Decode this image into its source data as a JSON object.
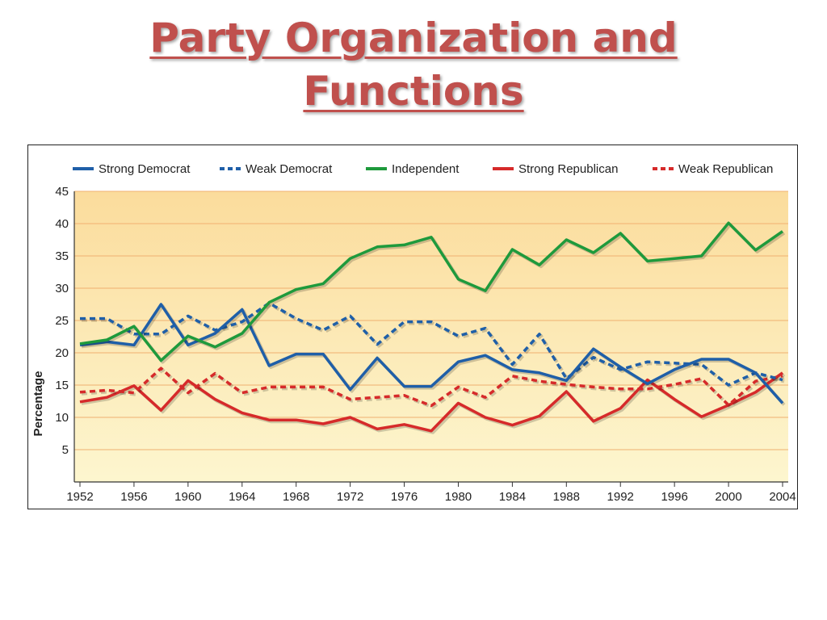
{
  "slide": {
    "title_line1": "Party Organization and",
    "title_line2": "Functions"
  },
  "colors": {
    "title": "#c0504d",
    "strong_democrat": "#1f5fa8",
    "weak_democrat": "#1f5fa8",
    "independent": "#1e9a3c",
    "strong_republican": "#d62a2a",
    "weak_republican": "#d62a2a",
    "plot_background_top": "#fbdc9c",
    "plot_background_bottom": "#fdf6cf",
    "gridline": "#f0b070"
  },
  "chart_data": {
    "type": "line",
    "title": "",
    "xlabel": "",
    "ylabel": "Percentage",
    "xlim": [
      1952,
      2004
    ],
    "ylim": [
      0,
      45
    ],
    "x_ticks": [
      1952,
      1956,
      1960,
      1964,
      1968,
      1972,
      1976,
      1980,
      1984,
      1988,
      1992,
      1996,
      2000,
      2004
    ],
    "y_ticks": [
      5,
      10,
      15,
      20,
      25,
      30,
      35,
      40,
      45
    ],
    "grid": true,
    "legend_position": "top",
    "x": [
      1952,
      1954,
      1956,
      1958,
      1960,
      1962,
      1964,
      1966,
      1968,
      1970,
      1972,
      1974,
      1976,
      1978,
      1980,
      1982,
      1984,
      1986,
      1988,
      1990,
      1992,
      1994,
      1996,
      1998,
      2000,
      2002,
      2004
    ],
    "series": [
      {
        "name": "Strong Democrat",
        "style": "solid",
        "values": [
          21.2,
          21.7,
          21.2,
          27.5,
          21.2,
          23.0,
          26.7,
          18.0,
          19.8,
          19.8,
          14.3,
          19.2,
          14.8,
          14.8,
          18.6,
          19.6,
          17.4,
          16.9,
          15.7,
          20.6,
          17.8,
          15.2,
          17.4,
          19.0,
          19.0,
          16.9,
          12.2
        ]
      },
      {
        "name": "Weak Democrat",
        "style": "dashed",
        "values": [
          25.3,
          25.3,
          22.9,
          22.9,
          25.7,
          23.5,
          24.8,
          27.7,
          25.3,
          23.5,
          25.7,
          21.3,
          24.8,
          24.8,
          22.6,
          23.8,
          18.2,
          22.9,
          16.0,
          19.3,
          17.4,
          18.6,
          18.4,
          18.2,
          15.0,
          16.9,
          15.8
        ]
      },
      {
        "name": "Independent",
        "style": "solid",
        "values": [
          21.4,
          22.0,
          24.1,
          18.8,
          22.6,
          20.9,
          23.0,
          27.8,
          29.8,
          30.7,
          34.6,
          36.4,
          36.7,
          37.9,
          31.4,
          29.6,
          36.0,
          33.6,
          37.5,
          35.5,
          38.5,
          34.2,
          34.6,
          35.0,
          40.1,
          35.9,
          38.8
        ]
      },
      {
        "name": "Strong Republican",
        "style": "solid",
        "values": [
          12.4,
          13.1,
          14.9,
          11.1,
          15.7,
          12.8,
          10.7,
          9.6,
          9.6,
          9.0,
          10.0,
          8.2,
          8.9,
          7.9,
          12.2,
          10.0,
          8.8,
          10.2,
          14.0,
          9.4,
          11.4,
          15.8,
          12.8,
          10.1,
          11.9,
          13.9,
          16.9
        ]
      },
      {
        "name": "Weak Republican",
        "style": "dashed",
        "values": [
          13.9,
          14.2,
          13.8,
          17.6,
          13.8,
          16.8,
          13.8,
          14.7,
          14.7,
          14.7,
          12.8,
          13.1,
          13.4,
          11.8,
          14.7,
          13.1,
          16.4,
          15.6,
          15.1,
          14.7,
          14.4,
          14.4,
          15.1,
          16.0,
          11.9,
          15.6,
          16.4
        ]
      }
    ]
  }
}
